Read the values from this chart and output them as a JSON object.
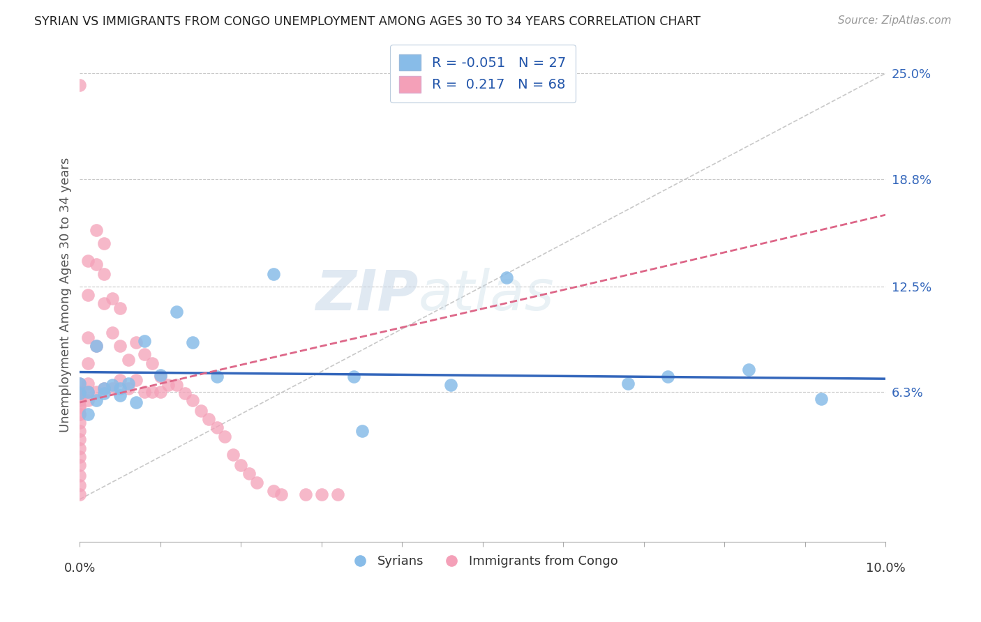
{
  "title": "SYRIAN VS IMMIGRANTS FROM CONGO UNEMPLOYMENT AMONG AGES 30 TO 34 YEARS CORRELATION CHART",
  "source": "Source: ZipAtlas.com",
  "ylabel": "Unemployment Among Ages 30 to 34 years",
  "xlim": [
    0.0,
    0.1
  ],
  "ylim": [
    -0.025,
    0.265
  ],
  "yticks": [
    0.063,
    0.125,
    0.188,
    0.25
  ],
  "ytick_labels": [
    "6.3%",
    "12.5%",
    "18.8%",
    "25.0%"
  ],
  "grid_color": "#c8c8c8",
  "background_color": "#ffffff",
  "watermark_zip": "ZIP",
  "watermark_atlas": "atlas",
  "syrian_color": "#88bce8",
  "congo_color": "#f4a0b8",
  "syrian_R": -0.051,
  "syrian_N": 27,
  "congo_R": 0.217,
  "congo_N": 68,
  "syrian_trend_color": "#3366bb",
  "congo_trend_color": "#dd6688",
  "diag_color": "#bbbbbb",
  "syrian_x": [
    0.0,
    0.0,
    0.001,
    0.001,
    0.002,
    0.003,
    0.004,
    0.005,
    0.006,
    0.008,
    0.01,
    0.012,
    0.014,
    0.017,
    0.024,
    0.034,
    0.035,
    0.046,
    0.053,
    0.068,
    0.073,
    0.083,
    0.092,
    0.003,
    0.005,
    0.007,
    0.002
  ],
  "syrian_y": [
    0.062,
    0.068,
    0.05,
    0.063,
    0.058,
    0.062,
    0.067,
    0.061,
    0.068,
    0.093,
    0.073,
    0.11,
    0.092,
    0.072,
    0.132,
    0.072,
    0.04,
    0.067,
    0.13,
    0.068,
    0.072,
    0.076,
    0.059,
    0.065,
    0.065,
    0.057,
    0.09
  ],
  "congo_x": [
    0.0,
    0.0,
    0.0,
    0.0,
    0.0,
    0.0,
    0.0,
    0.0,
    0.0,
    0.0,
    0.0,
    0.0,
    0.0,
    0.0,
    0.0,
    0.0,
    0.0,
    0.0,
    0.0,
    0.0,
    0.001,
    0.001,
    0.001,
    0.001,
    0.001,
    0.001,
    0.001,
    0.002,
    0.002,
    0.002,
    0.002,
    0.003,
    0.003,
    0.003,
    0.003,
    0.004,
    0.004,
    0.004,
    0.005,
    0.005,
    0.005,
    0.006,
    0.006,
    0.007,
    0.007,
    0.008,
    0.008,
    0.009,
    0.009,
    0.01,
    0.01,
    0.011,
    0.012,
    0.013,
    0.014,
    0.015,
    0.016,
    0.017,
    0.018,
    0.019,
    0.02,
    0.021,
    0.022,
    0.024,
    0.025,
    0.028,
    0.03,
    0.032
  ],
  "congo_y": [
    0.243,
    0.068,
    0.063,
    0.058,
    0.054,
    0.05,
    0.045,
    0.04,
    0.035,
    0.03,
    0.025,
    0.02,
    0.014,
    0.008,
    0.003,
    0.058,
    0.063,
    0.06,
    0.055,
    0.05,
    0.14,
    0.12,
    0.095,
    0.08,
    0.068,
    0.063,
    0.058,
    0.158,
    0.138,
    0.09,
    0.063,
    0.15,
    0.132,
    0.115,
    0.065,
    0.118,
    0.098,
    0.065,
    0.112,
    0.09,
    0.07,
    0.082,
    0.065,
    0.092,
    0.07,
    0.085,
    0.063,
    0.08,
    0.063,
    0.072,
    0.063,
    0.067,
    0.067,
    0.062,
    0.058,
    0.052,
    0.047,
    0.042,
    0.037,
    0.026,
    0.02,
    0.015,
    0.01,
    0.005,
    0.003,
    0.003,
    0.003,
    0.003
  ]
}
